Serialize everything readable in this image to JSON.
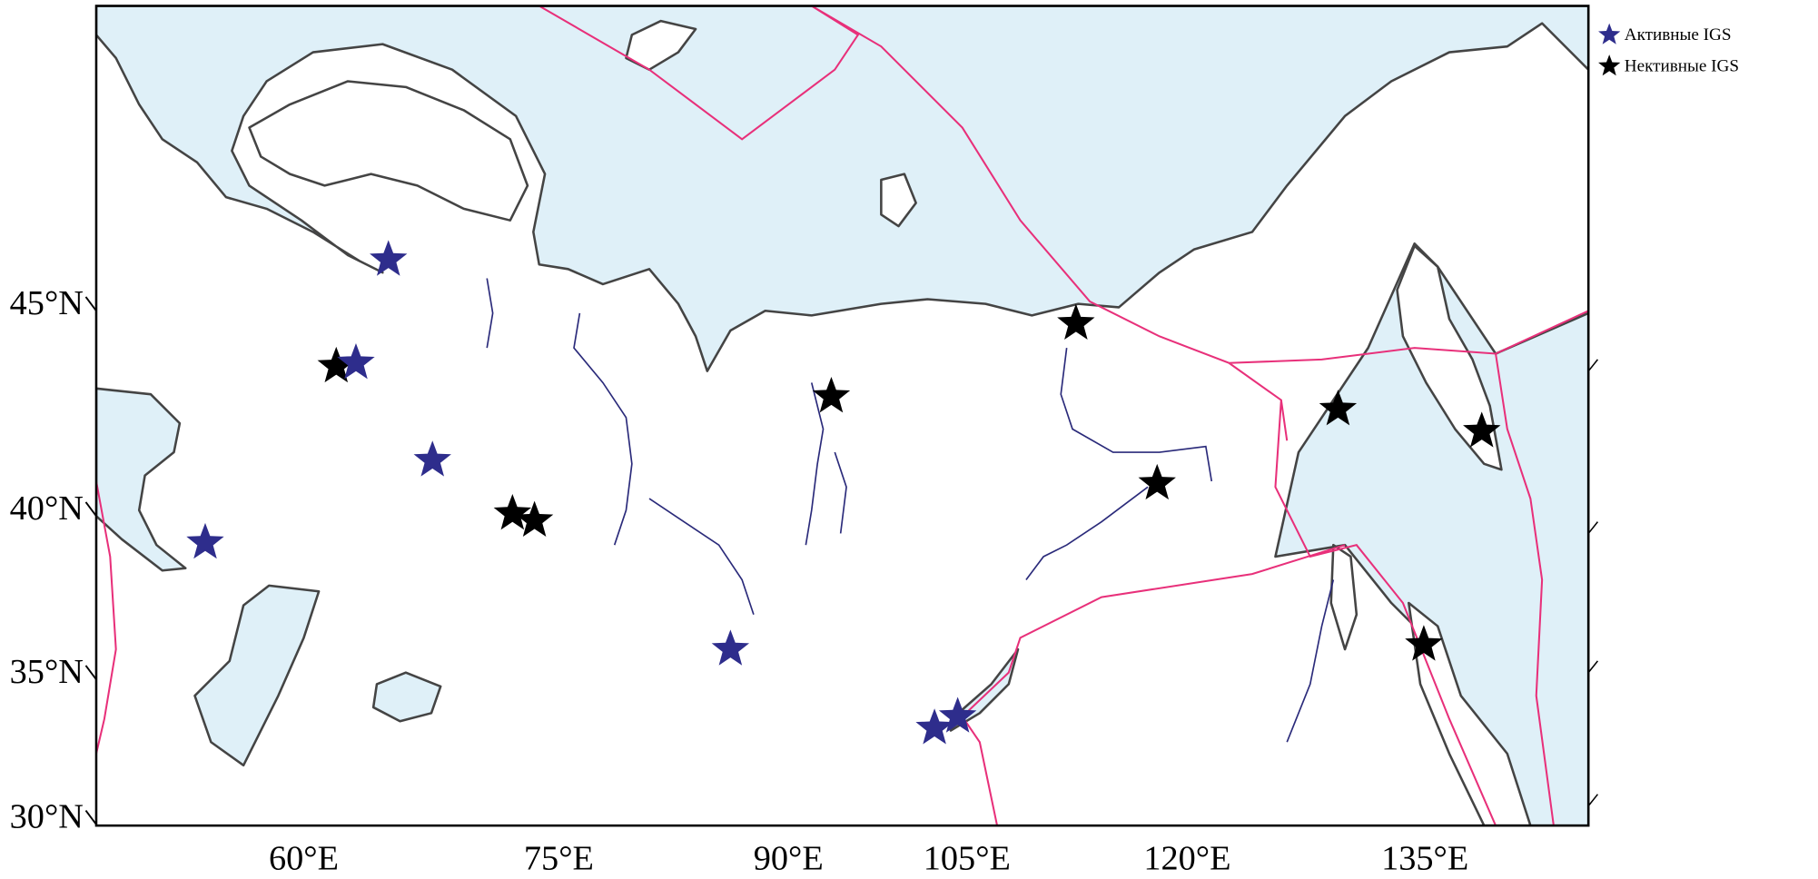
{
  "legend": [
    {
      "label": "Активные IGS",
      "color": "#2e2d8c"
    },
    {
      "label": "Нективные IGS",
      "color": "#000000"
    }
  ],
  "axes": {
    "latitude_labels": [
      "45°N",
      "40°N",
      "35°N",
      "30°N"
    ],
    "longitude_labels": [
      "60°E",
      "75°E",
      "90°E",
      "105°E",
      "120°E",
      "135°E"
    ]
  }
}
